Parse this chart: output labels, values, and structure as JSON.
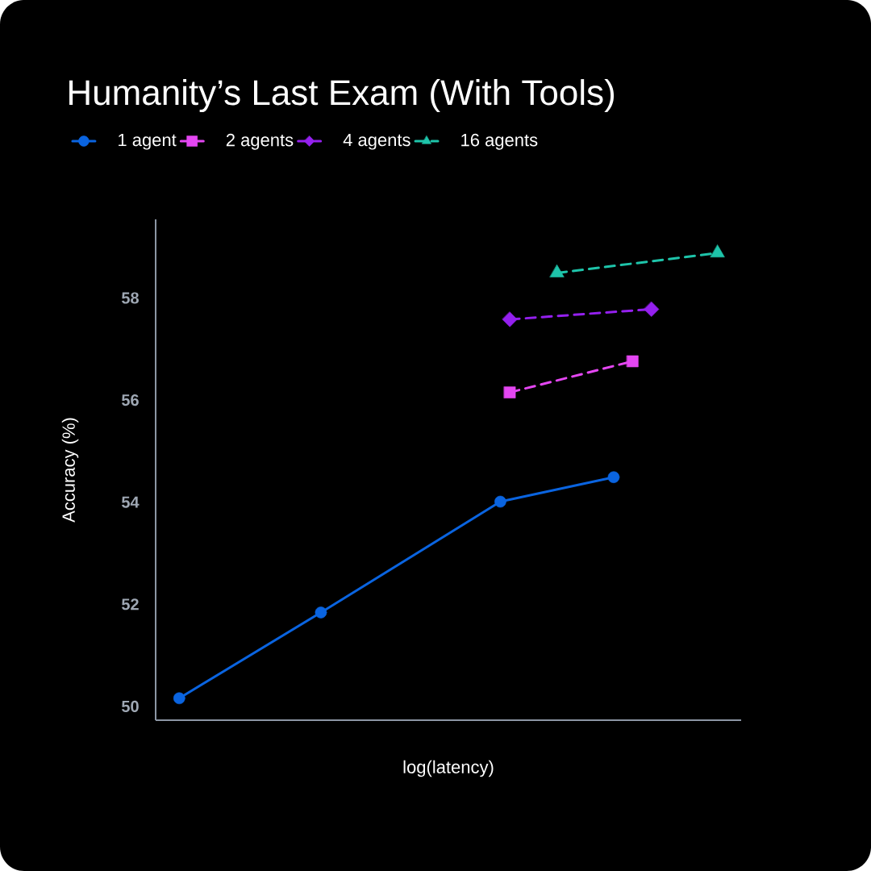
{
  "chart_data": {
    "type": "line",
    "title": "Humanity’s Last Exam (With Tools)",
    "xlabel": "log(latency)",
    "ylabel": "Accuracy (%)",
    "categories": [
      null,
      null,
      null,
      null,
      null,
      null,
      null,
      null,
      null,
      null,
      null,
      null,
      null,
      null,
      null,
      null,
      null,
      null,
      null,
      null,
      null,
      null,
      null,
      null,
      null,
      null,
      null,
      null,
      null,
      null,
      null,
      null,
      null,
      null,
      null,
      null,
      null,
      null,
      null,
      null,
      null,
      null,
      null,
      null,
      null,
      null,
      null,
      null,
      null,
      null,
      null,
      null,
      null,
      null,
      null,
      null,
      null,
      null,
      null,
      null,
      null,
      null
    ],
    "ylim": [
      49.73,
      59.54
    ],
    "yticks": [
      50,
      52,
      54,
      56,
      58
    ],
    "legend": "top left",
    "series": [
      {
        "name": "1 agent",
        "color": "#0a64e0",
        "marker": "circle",
        "line_style": "solid",
        "values": [
          null,
          null,
          50.16,
          null,
          null,
          null,
          null,
          null,
          null,
          null,
          null,
          null,
          null,
          null,
          null,
          null,
          null,
          51.84,
          null,
          null,
          null,
          null,
          null,
          null,
          null,
          null,
          null,
          null,
          null,
          null,
          null,
          null,
          null,
          null,
          null,
          null,
          54.01,
          null,
          null,
          null,
          null,
          null,
          null,
          null,
          null,
          null,
          null,
          null,
          54.49,
          null,
          null,
          null,
          null,
          null,
          null,
          null,
          null,
          null,
          null,
          null,
          null,
          null
        ]
      },
      {
        "name": "2 agents",
        "color": "#e446f2",
        "marker": "square",
        "line_style": "dashed",
        "values": [
          null,
          null,
          null,
          null,
          null,
          null,
          null,
          null,
          null,
          null,
          null,
          null,
          null,
          null,
          null,
          null,
          null,
          null,
          null,
          null,
          null,
          null,
          null,
          null,
          null,
          null,
          null,
          null,
          null,
          null,
          null,
          null,
          null,
          null,
          null,
          null,
          null,
          56.15,
          null,
          null,
          null,
          null,
          null,
          null,
          null,
          null,
          null,
          null,
          null,
          null,
          56.76,
          null,
          null,
          null,
          null,
          null,
          null,
          null,
          null,
          null,
          null,
          null
        ]
      },
      {
        "name": "4 agents",
        "color": "#9420ee",
        "marker": "diamond",
        "line_style": "dashed",
        "values": [
          null,
          null,
          null,
          null,
          null,
          null,
          null,
          null,
          null,
          null,
          null,
          null,
          null,
          null,
          null,
          null,
          null,
          null,
          null,
          null,
          null,
          null,
          null,
          null,
          null,
          null,
          null,
          null,
          null,
          null,
          null,
          null,
          null,
          null,
          null,
          null,
          null,
          57.58,
          null,
          null,
          null,
          null,
          null,
          null,
          null,
          null,
          null,
          null,
          null,
          null,
          null,
          null,
          57.78,
          null,
          null,
          null,
          null,
          null,
          null,
          null,
          null,
          null
        ]
      },
      {
        "name": "16 agents",
        "color": "#1ec4aa",
        "marker": "triangle",
        "line_style": "dashed",
        "values": [
          null,
          null,
          null,
          null,
          null,
          null,
          null,
          null,
          null,
          null,
          null,
          null,
          null,
          null,
          null,
          null,
          null,
          null,
          null,
          null,
          null,
          null,
          null,
          null,
          null,
          null,
          null,
          null,
          null,
          null,
          null,
          null,
          null,
          null,
          null,
          null,
          null,
          null,
          null,
          null,
          null,
          null,
          58.49,
          null,
          null,
          null,
          null,
          null,
          null,
          null,
          null,
          null,
          null,
          null,
          null,
          null,
          null,
          null,
          null,
          58.88,
          null,
          null
        ]
      }
    ]
  }
}
